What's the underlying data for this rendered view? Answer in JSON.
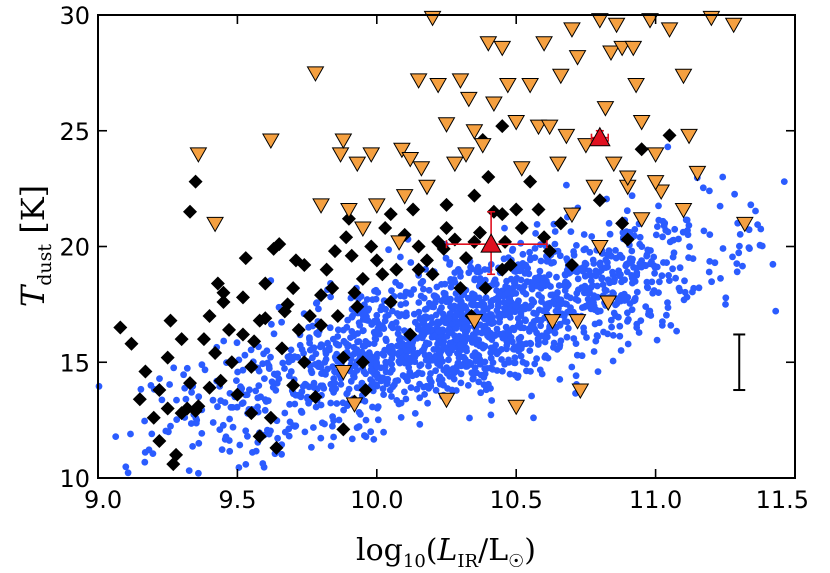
{
  "chart_data": {
    "type": "scatter",
    "title": "",
    "xlabel_parts": {
      "prefix": "log",
      "sub10": "10",
      "open": "(",
      "L": "L",
      "sub_ir": "IR",
      "slash": "/L",
      "sun": "☉",
      "close": ")"
    },
    "ylabel_parts": {
      "T": "T",
      "sub": "dust",
      "unit": " [K]"
    },
    "xlim": [
      9.0,
      11.5
    ],
    "ylim": [
      10,
      30
    ],
    "xticks": [
      9.0,
      9.5,
      10.0,
      10.5,
      11.0,
      11.5
    ],
    "xtick_labels": [
      "9.0",
      "9.5",
      "10.0",
      "10.5",
      "11.0",
      "11.5"
    ],
    "yticks": [
      10,
      15,
      20,
      25,
      30
    ],
    "ytick_labels": [
      "10",
      "15",
      "20",
      "25",
      "30"
    ],
    "colors": {
      "blue": "#2b5cff",
      "black": "#000000",
      "orange": "#f5a040",
      "red": "#e01020"
    },
    "series": [
      {
        "name": "blue-dots",
        "marker": "circle",
        "trend": {
          "slope": 3.6,
          "intercept": -20.6,
          "scatter": 1.5,
          "xmin": 9.0,
          "xmax": 11.48,
          "count": 1700,
          "xmean": 10.3,
          "xsd": 0.45
        }
      },
      {
        "name": "black-diamonds",
        "marker": "diamond",
        "points": [
          [
            9.08,
            16.5
          ],
          [
            9.12,
            15.8
          ],
          [
            9.15,
            13.4
          ],
          [
            9.17,
            14.6
          ],
          [
            9.2,
            12.6
          ],
          [
            9.22,
            13.8
          ],
          [
            9.25,
            15.2
          ],
          [
            9.26,
            16.8
          ],
          [
            9.27,
            10.6
          ],
          [
            9.28,
            11.0
          ],
          [
            9.3,
            12.8
          ],
          [
            9.32,
            13.0
          ],
          [
            9.33,
            14.1
          ],
          [
            9.35,
            12.9
          ],
          [
            9.36,
            13.1
          ],
          [
            9.38,
            16.0
          ],
          [
            9.4,
            17.0
          ],
          [
            9.42,
            15.4
          ],
          [
            9.44,
            14.2
          ],
          [
            9.45,
            18.0
          ],
          [
            9.47,
            16.4
          ],
          [
            9.48,
            15.0
          ],
          [
            9.5,
            13.6
          ],
          [
            9.52,
            17.8
          ],
          [
            9.53,
            19.5
          ],
          [
            9.55,
            14.8
          ],
          [
            9.56,
            15.9
          ],
          [
            9.58,
            11.8
          ],
          [
            9.6,
            16.9
          ],
          [
            9.62,
            12.6
          ],
          [
            9.63,
            19.9
          ],
          [
            9.64,
            11.3
          ],
          [
            9.66,
            15.6
          ],
          [
            9.68,
            17.5
          ],
          [
            9.7,
            18.2
          ],
          [
            9.71,
            19.4
          ],
          [
            9.72,
            16.4
          ],
          [
            9.74,
            15.0
          ],
          [
            9.76,
            17.0
          ],
          [
            9.78,
            13.5
          ],
          [
            9.8,
            16.6
          ],
          [
            9.82,
            19.0
          ],
          [
            9.84,
            18.2
          ],
          [
            9.86,
            17.0
          ],
          [
            9.88,
            15.2
          ],
          [
            9.89,
            20.4
          ],
          [
            9.9,
            21.2
          ],
          [
            9.91,
            19.6
          ],
          [
            9.92,
            18.0
          ],
          [
            9.93,
            17.4
          ],
          [
            9.95,
            15.0
          ],
          [
            9.96,
            13.8
          ],
          [
            9.98,
            20.0
          ],
          [
            10.0,
            19.4
          ],
          [
            10.02,
            18.8
          ],
          [
            10.03,
            20.8
          ],
          [
            10.05,
            21.4
          ],
          [
            10.07,
            19.0
          ],
          [
            10.1,
            20.5
          ],
          [
            10.12,
            16.2
          ],
          [
            10.13,
            21.6
          ],
          [
            10.15,
            20.0
          ],
          [
            10.18,
            19.4
          ],
          [
            10.2,
            18.8
          ],
          [
            10.22,
            20.2
          ],
          [
            10.24,
            19.9
          ],
          [
            10.25,
            21.8
          ],
          [
            10.28,
            20.3
          ],
          [
            10.3,
            18.2
          ],
          [
            10.32,
            19.5
          ],
          [
            10.34,
            17.0
          ],
          [
            10.35,
            22.2
          ],
          [
            10.37,
            20.6
          ],
          [
            10.39,
            18.2
          ],
          [
            10.4,
            23.0
          ],
          [
            10.42,
            21.5
          ],
          [
            10.45,
            21.4
          ],
          [
            10.46,
            20.2
          ],
          [
            10.48,
            19.2
          ],
          [
            10.5,
            21.6
          ],
          [
            10.52,
            20.8
          ],
          [
            10.55,
            22.8
          ],
          [
            10.58,
            21.6
          ],
          [
            10.6,
            20.4
          ],
          [
            10.62,
            19.8
          ],
          [
            10.66,
            21.0
          ],
          [
            10.7,
            19.2
          ],
          [
            10.8,
            22.0
          ],
          [
            10.88,
            21.0
          ],
          [
            10.9,
            20.3
          ],
          [
            10.95,
            24.2
          ],
          [
            11.05,
            24.8
          ],
          [
            9.35,
            22.8
          ],
          [
            9.33,
            21.5
          ],
          [
            10.38,
            24.6
          ],
          [
            10.45,
            25.2
          ],
          [
            9.25,
            13.0
          ],
          [
            9.4,
            13.9
          ],
          [
            9.55,
            12.8
          ],
          [
            9.7,
            14.0
          ],
          [
            9.22,
            11.6
          ],
          [
            9.3,
            16.0
          ],
          [
            9.45,
            17.6
          ],
          [
            9.6,
            18.4
          ],
          [
            9.74,
            19.2
          ],
          [
            9.85,
            19.8
          ],
          [
            9.95,
            18.6
          ],
          [
            10.05,
            17.6
          ],
          [
            10.15,
            19.0
          ],
          [
            10.25,
            20.8
          ],
          [
            10.35,
            20.2
          ],
          [
            10.45,
            19.0
          ],
          [
            9.88,
            12.1
          ],
          [
            9.92,
            13.3
          ],
          [
            9.8,
            17.9
          ],
          [
            9.67,
            17.2
          ],
          [
            9.52,
            16.2
          ],
          [
            9.43,
            18.4
          ],
          [
            9.58,
            16.8
          ],
          [
            9.65,
            20.1
          ]
        ]
      },
      {
        "name": "orange-triangles-down",
        "marker": "triangle-down",
        "points": [
          [
            9.36,
            24.0
          ],
          [
            9.42,
            21.0
          ],
          [
            9.62,
            24.6
          ],
          [
            9.78,
            27.5
          ],
          [
            9.8,
            21.8
          ],
          [
            9.87,
            24.0
          ],
          [
            9.88,
            24.6
          ],
          [
            9.9,
            21.6
          ],
          [
            9.95,
            20.8
          ],
          [
            9.93,
            23.6
          ],
          [
            9.98,
            24.0
          ],
          [
            10.0,
            21.8
          ],
          [
            10.08,
            20.2
          ],
          [
            10.09,
            24.2
          ],
          [
            10.1,
            22.2
          ],
          [
            10.15,
            27.2
          ],
          [
            10.12,
            23.8
          ],
          [
            10.16,
            23.4
          ],
          [
            10.18,
            22.6
          ],
          [
            10.2,
            29.9
          ],
          [
            10.22,
            27.0
          ],
          [
            10.25,
            25.3
          ],
          [
            10.28,
            23.6
          ],
          [
            10.3,
            27.2
          ],
          [
            10.32,
            24.0
          ],
          [
            10.33,
            26.4
          ],
          [
            10.35,
            25.0
          ],
          [
            10.38,
            24.4
          ],
          [
            10.4,
            28.8
          ],
          [
            10.42,
            26.2
          ],
          [
            10.45,
            28.6
          ],
          [
            10.47,
            27.0
          ],
          [
            10.5,
            25.4
          ],
          [
            10.52,
            23.4
          ],
          [
            10.55,
            27.0
          ],
          [
            10.58,
            25.2
          ],
          [
            10.6,
            28.8
          ],
          [
            10.62,
            25.2
          ],
          [
            10.65,
            23.6
          ],
          [
            10.66,
            27.4
          ],
          [
            10.68,
            24.8
          ],
          [
            10.7,
            29.4
          ],
          [
            10.72,
            28.2
          ],
          [
            10.75,
            24.4
          ],
          [
            10.78,
            22.6
          ],
          [
            10.8,
            29.8
          ],
          [
            10.82,
            26.0
          ],
          [
            10.84,
            28.4
          ],
          [
            10.86,
            29.6
          ],
          [
            10.88,
            28.6
          ],
          [
            10.9,
            22.6
          ],
          [
            10.92,
            28.6
          ],
          [
            10.93,
            27.0
          ],
          [
            10.95,
            25.4
          ],
          [
            10.98,
            29.8
          ],
          [
            11.0,
            24.0
          ],
          [
            11.02,
            22.4
          ],
          [
            11.05,
            29.4
          ],
          [
            11.1,
            27.4
          ],
          [
            11.12,
            24.8
          ],
          [
            11.15,
            23.2
          ],
          [
            11.2,
            29.9
          ],
          [
            11.28,
            29.6
          ],
          [
            11.32,
            21.0
          ],
          [
            9.88,
            14.6
          ],
          [
            9.92,
            13.2
          ],
          [
            10.25,
            13.4
          ],
          [
            10.35,
            16.8
          ],
          [
            10.5,
            13.1
          ],
          [
            10.63,
            16.8
          ],
          [
            10.73,
            13.8
          ],
          [
            10.72,
            16.8
          ],
          [
            10.83,
            17.6
          ],
          [
            10.8,
            20.0
          ],
          [
            10.95,
            21.2
          ],
          [
            11.1,
            21.6
          ],
          [
            10.9,
            23.0
          ],
          [
            10.85,
            23.6
          ],
          [
            11.0,
            22.8
          ],
          [
            10.7,
            21.4
          ]
        ]
      },
      {
        "name": "red-triangles",
        "marker": "triangle-up",
        "points": [
          [
            10.41,
            20.1
          ],
          [
            10.8,
            24.7
          ]
        ],
        "errors": [
          {
            "x": 10.41,
            "y": 20.1,
            "xerr": [
              0.16,
              0.2
            ],
            "yerr": [
              1.3,
              1.4
            ]
          },
          {
            "x": 10.8,
            "y": 24.7,
            "xerr": [
              0.03,
              0.03
            ],
            "yerr": [
              0.3,
              0.3
            ]
          }
        ]
      }
    ],
    "typical_error": {
      "x": 11.3,
      "y": 15.0,
      "half_height": 1.2
    }
  }
}
